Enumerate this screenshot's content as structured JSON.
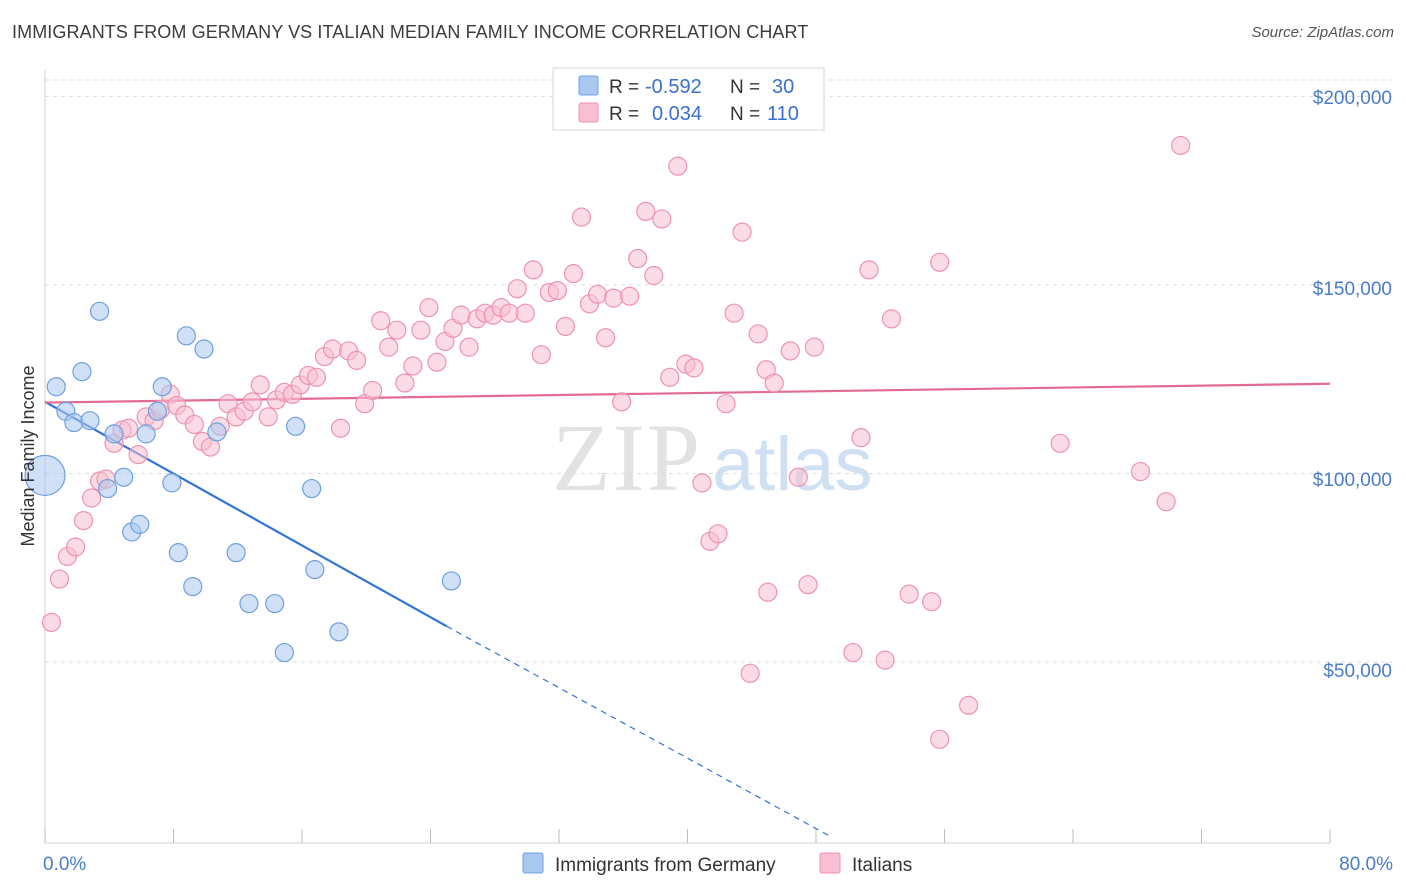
{
  "title": "IMMIGRANTS FROM GERMANY VS ITALIAN MEDIAN FAMILY INCOME CORRELATION CHART",
  "source": "Source: ZipAtlas.com",
  "watermark": {
    "zip": "ZIP",
    "atlas": "atlas"
  },
  "colors": {
    "blue_fill": "#a9c8f0",
    "blue_stroke": "#6f9fe0",
    "blue_line": "#2f74d6",
    "pink_fill": "#f8bfd0",
    "pink_stroke": "#ee92b0",
    "pink_line": "#e36a96",
    "grid": "#dcdcdc",
    "tick_label": "#4a7cc9"
  },
  "stats_legend": [
    {
      "r_label": "R =",
      "r_value": "-0.592",
      "n_label": "N =",
      "n_value": "30"
    },
    {
      "r_label": "R =",
      "r_value": "0.034",
      "n_label": "N =",
      "n_value": "110"
    }
  ],
  "chart_data": {
    "type": "scatter",
    "title": "IMMIGRANTS FROM GERMANY VS ITALIAN MEDIAN FAMILY INCOME CORRELATION CHART",
    "ylabel": "Median Family Income",
    "xlabel": "",
    "x_tick_labels": [
      "0.0%",
      "80.0%"
    ],
    "y_tick_labels": [
      "$50,000",
      "$100,000",
      "$150,000",
      "$200,000"
    ],
    "xlim": [
      0,
      80
    ],
    "ylim": [
      2000,
      207000
    ],
    "x_unit": "%",
    "grid": true,
    "legend_position": "bottom",
    "series": [
      {
        "name": "Immigrants from Germany",
        "color": "blue",
        "r": -0.592,
        "n": 30,
        "trend": {
          "x0": 0,
          "y0": 119000,
          "x1": 25,
          "y1": 59500,
          "dash_to_x": 49,
          "dash_to_y": 3500
        },
        "points": [
          {
            "x": 0.0,
            "y": 99500,
            "big": true
          },
          {
            "x": 0.7,
            "y": 123000
          },
          {
            "x": 1.3,
            "y": 116500
          },
          {
            "x": 1.8,
            "y": 113500
          },
          {
            "x": 2.3,
            "y": 127000
          },
          {
            "x": 2.8,
            "y": 114000
          },
          {
            "x": 3.4,
            "y": 143000
          },
          {
            "x": 3.9,
            "y": 96000
          },
          {
            "x": 4.3,
            "y": 110500
          },
          {
            "x": 4.9,
            "y": 99000
          },
          {
            "x": 5.4,
            "y": 84500
          },
          {
            "x": 5.9,
            "y": 86500
          },
          {
            "x": 6.3,
            "y": 110500
          },
          {
            "x": 7.0,
            "y": 116500
          },
          {
            "x": 7.3,
            "y": 123000
          },
          {
            "x": 7.9,
            "y": 97500
          },
          {
            "x": 8.3,
            "y": 79000
          },
          {
            "x": 8.8,
            "y": 136500
          },
          {
            "x": 9.2,
            "y": 70000
          },
          {
            "x": 9.9,
            "y": 133000
          },
          {
            "x": 10.7,
            "y": 111000
          },
          {
            "x": 11.9,
            "y": 79000
          },
          {
            "x": 12.7,
            "y": 65500
          },
          {
            "x": 14.3,
            "y": 65500
          },
          {
            "x": 14.9,
            "y": 52500
          },
          {
            "x": 15.6,
            "y": 112500
          },
          {
            "x": 16.6,
            "y": 96000
          },
          {
            "x": 16.8,
            "y": 74500
          },
          {
            "x": 18.3,
            "y": 58000
          },
          {
            "x": 25.3,
            "y": 71500
          }
        ]
      },
      {
        "name": "Italians",
        "color": "pink",
        "r": 0.034,
        "n": 110,
        "trend": {
          "x0": 0,
          "y0": 118800,
          "x1": 80,
          "y1": 123800
        },
        "points": [
          {
            "x": 0.4,
            "y": 60500
          },
          {
            "x": 0.9,
            "y": 72000
          },
          {
            "x": 1.4,
            "y": 78000
          },
          {
            "x": 1.9,
            "y": 80500
          },
          {
            "x": 2.4,
            "y": 87500
          },
          {
            "x": 2.9,
            "y": 93500
          },
          {
            "x": 3.4,
            "y": 98000
          },
          {
            "x": 3.8,
            "y": 98500
          },
          {
            "x": 4.3,
            "y": 108000
          },
          {
            "x": 4.8,
            "y": 111500
          },
          {
            "x": 5.2,
            "y": 112000
          },
          {
            "x": 5.8,
            "y": 105000
          },
          {
            "x": 6.3,
            "y": 115000
          },
          {
            "x": 6.8,
            "y": 114000
          },
          {
            "x": 7.2,
            "y": 117000
          },
          {
            "x": 7.8,
            "y": 121000
          },
          {
            "x": 8.2,
            "y": 118000
          },
          {
            "x": 8.7,
            "y": 115500
          },
          {
            "x": 9.3,
            "y": 113000
          },
          {
            "x": 9.8,
            "y": 108500
          },
          {
            "x": 10.3,
            "y": 107000
          },
          {
            "x": 10.9,
            "y": 112500
          },
          {
            "x": 11.4,
            "y": 118500
          },
          {
            "x": 11.9,
            "y": 115000
          },
          {
            "x": 12.4,
            "y": 116500
          },
          {
            "x": 12.9,
            "y": 119000
          },
          {
            "x": 13.4,
            "y": 123500
          },
          {
            "x": 13.9,
            "y": 115000
          },
          {
            "x": 14.4,
            "y": 119500
          },
          {
            "x": 14.9,
            "y": 121500
          },
          {
            "x": 15.4,
            "y": 121000
          },
          {
            "x": 15.9,
            "y": 123500
          },
          {
            "x": 16.4,
            "y": 126000
          },
          {
            "x": 16.9,
            "y": 125500
          },
          {
            "x": 17.4,
            "y": 131000
          },
          {
            "x": 17.9,
            "y": 133000
          },
          {
            "x": 18.4,
            "y": 112000
          },
          {
            "x": 18.9,
            "y": 132500
          },
          {
            "x": 19.4,
            "y": 130000
          },
          {
            "x": 19.9,
            "y": 118500
          },
          {
            "x": 20.4,
            "y": 122000
          },
          {
            "x": 20.9,
            "y": 140500
          },
          {
            "x": 21.4,
            "y": 133500
          },
          {
            "x": 21.9,
            "y": 138000
          },
          {
            "x": 22.4,
            "y": 124000
          },
          {
            "x": 22.9,
            "y": 128500
          },
          {
            "x": 23.4,
            "y": 138000
          },
          {
            "x": 23.9,
            "y": 144000
          },
          {
            "x": 24.4,
            "y": 129500
          },
          {
            "x": 24.9,
            "y": 135000
          },
          {
            "x": 25.4,
            "y": 138500
          },
          {
            "x": 25.9,
            "y": 142000
          },
          {
            "x": 26.4,
            "y": 133500
          },
          {
            "x": 26.9,
            "y": 141000
          },
          {
            "x": 27.4,
            "y": 142500
          },
          {
            "x": 27.9,
            "y": 142000
          },
          {
            "x": 28.4,
            "y": 144000
          },
          {
            "x": 28.9,
            "y": 142500
          },
          {
            "x": 29.4,
            "y": 149000
          },
          {
            "x": 29.9,
            "y": 142500
          },
          {
            "x": 30.4,
            "y": 154000
          },
          {
            "x": 30.9,
            "y": 131500
          },
          {
            "x": 31.4,
            "y": 148000
          },
          {
            "x": 31.9,
            "y": 148500
          },
          {
            "x": 32.4,
            "y": 139000
          },
          {
            "x": 32.9,
            "y": 153000
          },
          {
            "x": 33.4,
            "y": 168000
          },
          {
            "x": 33.9,
            "y": 145000
          },
          {
            "x": 34.4,
            "y": 147500
          },
          {
            "x": 34.9,
            "y": 136000
          },
          {
            "x": 35.4,
            "y": 146500
          },
          {
            "x": 35.9,
            "y": 119000
          },
          {
            "x": 36.4,
            "y": 147000
          },
          {
            "x": 36.9,
            "y": 157000
          },
          {
            "x": 37.4,
            "y": 169500
          },
          {
            "x": 37.9,
            "y": 152500
          },
          {
            "x": 38.4,
            "y": 167500
          },
          {
            "x": 38.9,
            "y": 125500
          },
          {
            "x": 39.4,
            "y": 181500
          },
          {
            "x": 39.9,
            "y": 129000
          },
          {
            "x": 40.4,
            "y": 128000
          },
          {
            "x": 40.9,
            "y": 97500
          },
          {
            "x": 41.4,
            "y": 82000
          },
          {
            "x": 41.9,
            "y": 84000
          },
          {
            "x": 42.4,
            "y": 118500
          },
          {
            "x": 42.9,
            "y": 142500
          },
          {
            "x": 43.4,
            "y": 164000
          },
          {
            "x": 43.9,
            "y": 47000
          },
          {
            "x": 44.4,
            "y": 137000
          },
          {
            "x": 44.9,
            "y": 127500
          },
          {
            "x": 45.4,
            "y": 124000
          },
          {
            "x": 46.4,
            "y": 132500
          },
          {
            "x": 47.9,
            "y": 133500
          },
          {
            "x": 45.0,
            "y": 68500
          },
          {
            "x": 46.9,
            "y": 99000
          },
          {
            "x": 47.5,
            "y": 70500
          },
          {
            "x": 50.3,
            "y": 52500
          },
          {
            "x": 50.8,
            "y": 109500
          },
          {
            "x": 51.3,
            "y": 154000
          },
          {
            "x": 52.3,
            "y": 50500
          },
          {
            "x": 52.7,
            "y": 141000
          },
          {
            "x": 53.8,
            "y": 68000
          },
          {
            "x": 55.7,
            "y": 156000
          },
          {
            "x": 55.7,
            "y": 29500
          },
          {
            "x": 55.2,
            "y": 66000
          },
          {
            "x": 57.5,
            "y": 38500
          },
          {
            "x": 63.2,
            "y": 108000
          },
          {
            "x": 68.2,
            "y": 100500
          },
          {
            "x": 69.8,
            "y": 92500
          },
          {
            "x": 70.7,
            "y": 187000
          }
        ]
      }
    ]
  }
}
